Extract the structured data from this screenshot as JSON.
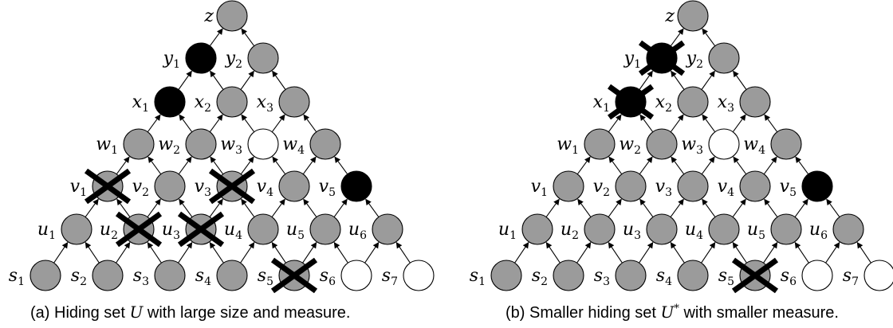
{
  "colors": {
    "gray": "#9b9b9b",
    "black": "#000000",
    "white": "#ffffff"
  },
  "node_labels": {
    "z": {
      "base": "z",
      "sub": ""
    },
    "y1": {
      "base": "y",
      "sub": "1"
    },
    "y2": {
      "base": "y",
      "sub": "2"
    },
    "x1": {
      "base": "x",
      "sub": "1"
    },
    "x2": {
      "base": "x",
      "sub": "2"
    },
    "x3": {
      "base": "x",
      "sub": "3"
    },
    "w1": {
      "base": "w",
      "sub": "1"
    },
    "w2": {
      "base": "w",
      "sub": "2"
    },
    "w3": {
      "base": "w",
      "sub": "3"
    },
    "w4": {
      "base": "w",
      "sub": "4"
    },
    "v1": {
      "base": "v",
      "sub": "1"
    },
    "v2": {
      "base": "v",
      "sub": "2"
    },
    "v3": {
      "base": "v",
      "sub": "3"
    },
    "v4": {
      "base": "v",
      "sub": "4"
    },
    "v5": {
      "base": "v",
      "sub": "5"
    },
    "u1": {
      "base": "u",
      "sub": "1"
    },
    "u2": {
      "base": "u",
      "sub": "2"
    },
    "u3": {
      "base": "u",
      "sub": "3"
    },
    "u4": {
      "base": "u",
      "sub": "4"
    },
    "u5": {
      "base": "u",
      "sub": "5"
    },
    "u6": {
      "base": "u",
      "sub": "6"
    },
    "s1": {
      "base": "s",
      "sub": "1"
    },
    "s2": {
      "base": "s",
      "sub": "2"
    },
    "s3": {
      "base": "s",
      "sub": "3"
    },
    "s4": {
      "base": "s",
      "sub": "4"
    },
    "s5": {
      "base": "s",
      "sub": "5"
    },
    "s6": {
      "base": "s",
      "sub": "6"
    },
    "s7": {
      "base": "s",
      "sub": "7"
    }
  },
  "panels": [
    {
      "id": "a",
      "black_nodes": [
        "y1",
        "x1",
        "v5"
      ],
      "white_nodes": [
        "w3",
        "s6",
        "s7"
      ],
      "crossed_nodes": [
        "v1",
        "v3",
        "u2",
        "u3",
        "s5"
      ],
      "caption": {
        "prefix": "(a)  Hiding set ",
        "symbol": "U",
        "sup": "",
        "suffix": " with large size and measure."
      }
    },
    {
      "id": "b",
      "black_nodes": [
        "y1",
        "x1",
        "v5"
      ],
      "white_nodes": [
        "w3",
        "s6",
        "s7"
      ],
      "crossed_nodes": [
        "y1",
        "x1",
        "s5"
      ],
      "caption": {
        "prefix": "(b)  Smaller hiding set ",
        "symbol": "U",
        "sup": "*",
        "suffix": " with smaller measure."
      }
    }
  ]
}
